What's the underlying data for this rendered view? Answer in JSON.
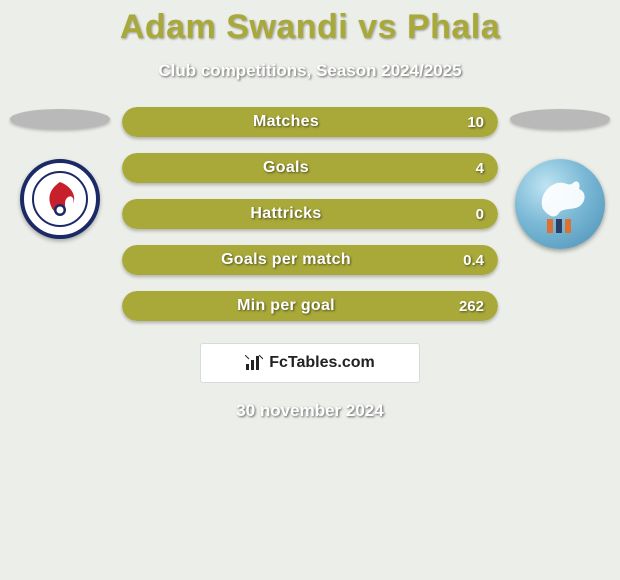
{
  "title": "Adam Swandi vs Phala",
  "title_color": "#a9a93a",
  "subtitle": "Club competitions, Season 2024/2025",
  "background_color": "#eceee9",
  "bar_fill_color": "#a9a93a",
  "bar_track_color": "#f4f3ee",
  "text_shadow_color": "rgba(0,0,0,0.55)",
  "ellipse_color": "#b9b9b9",
  "stats": [
    {
      "label": "Matches",
      "value": "10",
      "fill_pct": 100
    },
    {
      "label": "Goals",
      "value": "4",
      "fill_pct": 100
    },
    {
      "label": "Hattricks",
      "value": "0",
      "fill_pct": 100
    },
    {
      "label": "Goals per match",
      "value": "0.4",
      "fill_pct": 100
    },
    {
      "label": "Min per goal",
      "value": "262",
      "fill_pct": 100
    }
  ],
  "watermark": {
    "text": "FcTables.com",
    "icon": "bar-chart-icon"
  },
  "footer_date": "30 november 2024",
  "left_club": {
    "name": "home-united-crest",
    "primary": "#c8202b",
    "secondary": "#1b2a66"
  },
  "right_club": {
    "name": "blue-horse-crest",
    "primary": "#7bb9d6",
    "secondary": "#e07030"
  }
}
